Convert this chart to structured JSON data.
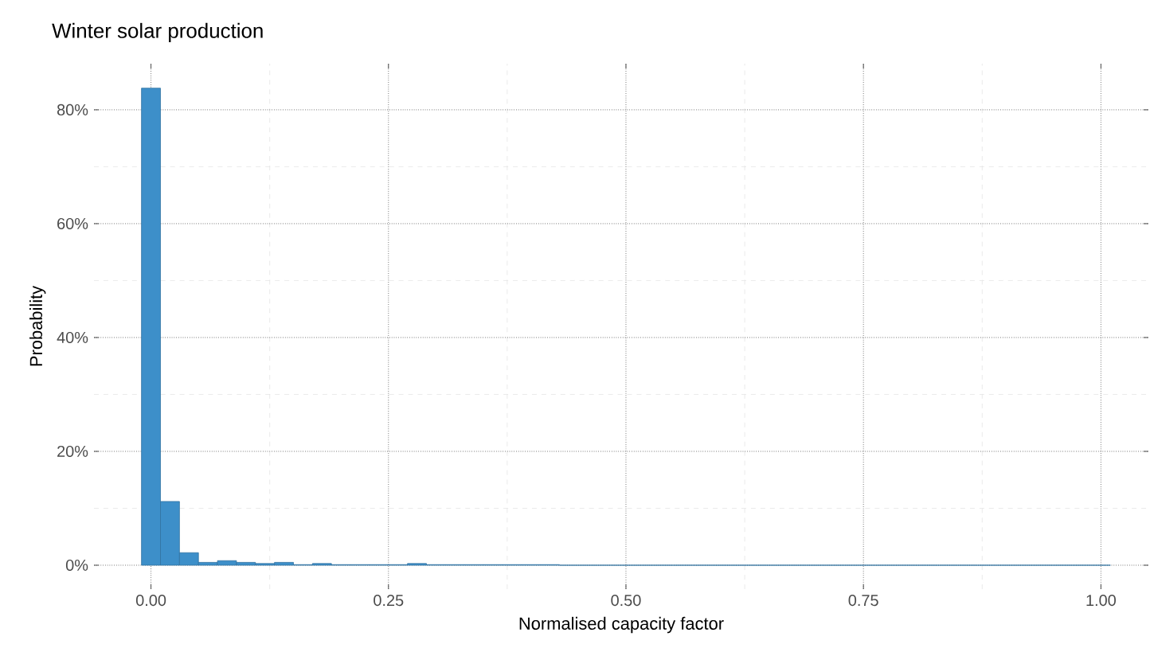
{
  "chart_data": {
    "type": "histogram",
    "title": "Winter solar production",
    "xlabel": "Normalised capacity factor",
    "ylabel": "Probability",
    "bins": [
      -0.01,
      0.01,
      0.03,
      0.05,
      0.07,
      0.09,
      0.11,
      0.13,
      0.15,
      0.17,
      0.19,
      0.21,
      0.23,
      0.25,
      0.27,
      0.29,
      0.31,
      0.33,
      0.35,
      0.37,
      0.39,
      0.41,
      0.43,
      0.45,
      0.47,
      0.49,
      0.51,
      0.53,
      0.55,
      0.57,
      0.59,
      0.61,
      0.63,
      0.65,
      0.67,
      0.69,
      0.71,
      0.73,
      0.75,
      0.77,
      0.79,
      0.81,
      0.83,
      0.85,
      0.87,
      0.89,
      0.91,
      0.93,
      0.95,
      0.97,
      0.99,
      1.01
    ],
    "values": [
      83.8,
      11.2,
      2.2,
      0.5,
      0.8,
      0.5,
      0.3,
      0.5,
      0.1,
      0.3,
      0.1,
      0.1,
      0.1,
      0.1,
      0.3,
      0.1,
      0.1,
      0.1,
      0.1,
      0.1,
      0.1,
      0.1,
      0,
      0,
      0,
      0,
      0,
      0,
      0,
      0,
      0,
      0,
      0,
      0,
      0,
      0,
      0,
      0,
      0,
      0,
      0,
      0,
      0,
      0,
      0,
      0,
      0,
      0,
      0,
      0,
      0
    ],
    "color": "#3d8fc9",
    "xlim": [
      -0.06,
      1.05
    ],
    "ylim": [
      -4.2,
      88.1
    ],
    "xticks": [
      {
        "value": 0,
        "label": "0.00"
      },
      {
        "value": 0.25,
        "label": "0.25"
      },
      {
        "value": 0.5,
        "label": "0.50"
      },
      {
        "value": 0.75,
        "label": "0.75"
      },
      {
        "value": 1,
        "label": "1.00"
      }
    ],
    "yticks": [
      {
        "value": 0,
        "label": "0%"
      },
      {
        "value": 20,
        "label": "20%"
      },
      {
        "value": 40,
        "label": "40%"
      },
      {
        "value": 60,
        "label": "60%"
      },
      {
        "value": 80,
        "label": "80%"
      }
    ],
    "grid": true
  }
}
